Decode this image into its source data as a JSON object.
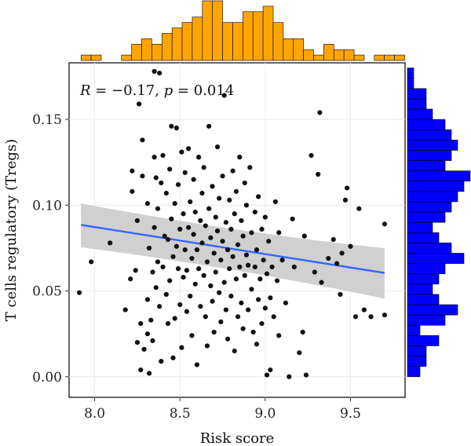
{
  "chart_data": {
    "type": "scatter",
    "xlabel": "Risk score",
    "ylabel": "T cells regulatory (Tregs)",
    "xlim": [
      7.85,
      9.82
    ],
    "ylim": [
      -0.012,
      0.183
    ],
    "x_ticks": [
      8.0,
      8.5,
      9.0,
      9.5
    ],
    "x_tick_labels": [
      "8.0",
      "8.5",
      "9.0",
      "9.5"
    ],
    "y_ticks": [
      0.0,
      0.05,
      0.1,
      0.15
    ],
    "y_tick_labels": [
      "0.00",
      "0.05",
      "0.10",
      "0.15"
    ],
    "annotation": {
      "r_symbol": "R",
      "r_text": " = −0.17, ",
      "p_symbol": "p",
      "p_text": " = 0.014"
    },
    "regression": {
      "x": [
        7.92,
        9.7
      ],
      "y": [
        0.0885,
        0.0605
      ],
      "ci_upper": [
        0.101,
        0.075
      ],
      "ci_lower": [
        0.0755,
        0.0455
      ],
      "ci_mid_x": 8.85,
      "ci_mid_upper": 0.08,
      "ci_mid_lower": 0.067
    },
    "points": [
      [
        7.91,
        0.049
      ],
      [
        7.98,
        0.067
      ],
      [
        8.09,
        0.078
      ],
      [
        8.18,
        0.039
      ],
      [
        8.21,
        0.057
      ],
      [
        8.22,
        0.12
      ],
      [
        8.22,
        0.108
      ],
      [
        8.24,
        0.062
      ],
      [
        8.25,
        0.091
      ],
      [
        8.25,
        0.02
      ],
      [
        8.26,
        0.159
      ],
      [
        8.27,
        0.031
      ],
      [
        8.27,
        0.004
      ],
      [
        8.28,
        0.117
      ],
      [
        8.28,
        0.138
      ],
      [
        8.29,
        0.016
      ],
      [
        8.31,
        0.101
      ],
      [
        8.31,
        0.025
      ],
      [
        8.31,
        0.045
      ],
      [
        8.32,
        0.075
      ],
      [
        8.32,
        0.002
      ],
      [
        8.33,
        0.033
      ],
      [
        8.34,
        0.061
      ],
      [
        8.34,
        0.021
      ],
      [
        8.35,
        0.128
      ],
      [
        8.35,
        0.087
      ],
      [
        8.35,
        0.178
      ],
      [
        8.36,
        0.052
      ],
      [
        8.36,
        0.116
      ],
      [
        8.37,
        0.067
      ],
      [
        8.37,
        0.098
      ],
      [
        8.38,
        0.177
      ],
      [
        8.38,
        0.041
      ],
      [
        8.39,
        0.113
      ],
      [
        8.39,
        0.009
      ],
      [
        8.4,
        0.064
      ],
      [
        8.4,
        0.129
      ],
      [
        8.41,
        0.082
      ],
      [
        8.42,
        0.107
      ],
      [
        8.42,
        0.048
      ],
      [
        8.43,
        0.08
      ],
      [
        8.43,
        0.031
      ],
      [
        8.44,
        0.121
      ],
      [
        8.44,
        0.056
      ],
      [
        8.45,
        0.092
      ],
      [
        8.45,
        0.146
      ],
      [
        8.46,
        0.07
      ],
      [
        8.46,
        0.011
      ],
      [
        8.47,
        0.034
      ],
      [
        8.47,
        0.101
      ],
      [
        8.48,
        0.076
      ],
      [
        8.48,
        0.145
      ],
      [
        8.49,
        0.112
      ],
      [
        8.49,
        0.063
      ],
      [
        8.5,
        0.086
      ],
      [
        8.5,
        0.042
      ],
      [
        8.51,
        0.131
      ],
      [
        8.51,
        0.017
      ],
      [
        8.52,
        0.058
      ],
      [
        8.52,
        0.095
      ],
      [
        8.53,
        0.074
      ],
      [
        8.53,
        0.119
      ],
      [
        8.54,
        0.038
      ],
      [
        8.54,
        0.062
      ],
      [
        8.55,
        0.133
      ],
      [
        8.55,
        0.087
      ],
      [
        8.56,
        0.047
      ],
      [
        8.56,
        0.102
      ],
      [
        8.57,
        0.069
      ],
      [
        8.57,
        0.024
      ],
      [
        8.58,
        0.115
      ],
      [
        8.58,
        0.083
      ],
      [
        8.59,
        0.054
      ],
      [
        8.59,
        0.096
      ],
      [
        8.6,
        0.074
      ],
      [
        8.6,
        0.007
      ],
      [
        8.61,
        0.128
      ],
      [
        8.61,
        0.063
      ],
      [
        8.62,
        0.091
      ],
      [
        8.62,
        0.041
      ],
      [
        8.63,
        0.107
      ],
      [
        8.63,
        0.078
      ],
      [
        8.64,
        0.059
      ],
      [
        8.64,
        0.122
      ],
      [
        8.65,
        0.035
      ],
      [
        8.65,
        0.088
      ],
      [
        8.66,
        0.067
      ],
      [
        8.66,
        0.018
      ],
      [
        8.67,
        0.146
      ],
      [
        8.67,
        0.098
      ],
      [
        8.68,
        0.053
      ],
      [
        8.68,
        0.081
      ],
      [
        8.69,
        0.111
      ],
      [
        8.69,
        0.044
      ],
      [
        8.7,
        0.072
      ],
      [
        8.7,
        0.026
      ],
      [
        8.71,
        0.093
      ],
      [
        8.71,
        0.061
      ],
      [
        8.72,
        0.134
      ],
      [
        8.72,
        0.085
      ],
      [
        8.73,
        0.049
      ],
      [
        8.73,
        0.104
      ],
      [
        8.74,
        0.068
      ],
      [
        8.74,
        0.032
      ],
      [
        8.75,
        0.117
      ],
      [
        8.75,
        0.079
      ],
      [
        8.76,
        0.055
      ],
      [
        8.76,
        0.164
      ],
      [
        8.77,
        0.09
      ],
      [
        8.77,
        0.039
      ],
      [
        8.78,
        0.074
      ],
      [
        8.78,
        0.022
      ],
      [
        8.79,
        0.103
      ],
      [
        8.79,
        0.063
      ],
      [
        8.8,
        0.086
      ],
      [
        8.8,
        0.047
      ],
      [
        8.81,
        0.12
      ],
      [
        8.81,
        0.07
      ],
      [
        8.82,
        0.015
      ],
      [
        8.82,
        0.095
      ],
      [
        8.83,
        0.057
      ],
      [
        8.83,
        0.108
      ],
      [
        8.84,
        0.035
      ],
      [
        8.84,
        0.077
      ],
      [
        8.85,
        0.128
      ],
      [
        8.85,
        0.064
      ],
      [
        8.86,
        0.091
      ],
      [
        8.86,
        0.043
      ],
      [
        8.87,
        0.082
      ],
      [
        8.87,
        0.028
      ],
      [
        8.88,
        0.113
      ],
      [
        8.88,
        0.059
      ],
      [
        8.89,
        0.071
      ],
      [
        8.89,
        0.1
      ],
      [
        8.9,
        0.039
      ],
      [
        8.9,
        0.065
      ],
      [
        8.91,
        0.122
      ],
      [
        8.92,
        0.084
      ],
      [
        8.92,
        0.051
      ],
      [
        8.93,
        0.026
      ],
      [
        8.94,
        0.096
      ],
      [
        8.94,
        0.064
      ],
      [
        8.95,
        0.019
      ],
      [
        8.95,
        0.074
      ],
      [
        8.96,
        0.105
      ],
      [
        8.96,
        0.045
      ],
      [
        8.97,
        0.057
      ],
      [
        8.98,
        0.086
      ],
      [
        8.98,
        0.031
      ],
      [
        8.99,
        0.068
      ],
      [
        9.0,
        0.04
      ],
      [
        9.0,
        0.093
      ],
      [
        9.01,
        0.001
      ],
      [
        9.01,
        0.06
      ],
      [
        9.02,
        0.079
      ],
      [
        9.03,
        0.046
      ],
      [
        9.03,
        0.004
      ],
      [
        9.04,
        0.064
      ],
      [
        9.05,
        0.035
      ],
      [
        9.06,
        0.102
      ],
      [
        9.07,
        0.056
      ],
      [
        9.08,
        0.084
      ],
      [
        9.08,
        0.024
      ],
      [
        9.1,
        0.068
      ],
      [
        9.12,
        0.043
      ],
      [
        9.14,
        0.0
      ],
      [
        9.16,
        0.092
      ],
      [
        9.17,
        0.064
      ],
      [
        9.2,
        0.014
      ],
      [
        9.22,
        0.026
      ],
      [
        9.23,
        0.082
      ],
      [
        9.24,
        0.001
      ],
      [
        9.27,
        0.129
      ],
      [
        9.29,
        0.061
      ],
      [
        9.31,
        0.118
      ],
      [
        9.32,
        0.154
      ],
      [
        9.33,
        0.055
      ],
      [
        9.37,
        0.069
      ],
      [
        9.4,
        0.08
      ],
      [
        9.42,
        0.066
      ],
      [
        9.44,
        0.048
      ],
      [
        9.45,
        0.072
      ],
      [
        9.47,
        0.103
      ],
      [
        9.48,
        0.11
      ],
      [
        9.5,
        0.076
      ],
      [
        9.53,
        0.035
      ],
      [
        9.55,
        0.098
      ],
      [
        9.58,
        0.039
      ],
      [
        9.62,
        0.035
      ],
      [
        9.7,
        0.036
      ],
      [
        9.7,
        0.089
      ]
    ],
    "x_histogram": {
      "bin_start": 7.92,
      "bin_width": 0.0593,
      "counts": [
        1,
        1,
        0,
        0,
        1,
        3,
        4,
        3,
        5,
        6,
        7,
        8,
        11,
        11,
        7,
        7,
        9,
        9,
        10,
        7,
        4,
        4,
        2,
        1,
        3,
        2,
        2,
        1,
        0,
        1,
        1,
        1
      ]
    },
    "y_histogram": {
      "bin_start": 0.0,
      "bin_width": 0.006,
      "counts": [
        2,
        3,
        3,
        5,
        2,
        6,
        8,
        5,
        4,
        5,
        6,
        9,
        7,
        5,
        4,
        6,
        7,
        8,
        9,
        10,
        6,
        7,
        8,
        7,
        6,
        4,
        3,
        3,
        1,
        1,
        0
      ]
    },
    "colors": {
      "points": "#111111",
      "regression_line": "#3366ff",
      "ci_band": "#c8c8c8",
      "x_histogram": "#ffa500",
      "y_histogram": "#0000ff",
      "hist_border": "#000000"
    }
  }
}
